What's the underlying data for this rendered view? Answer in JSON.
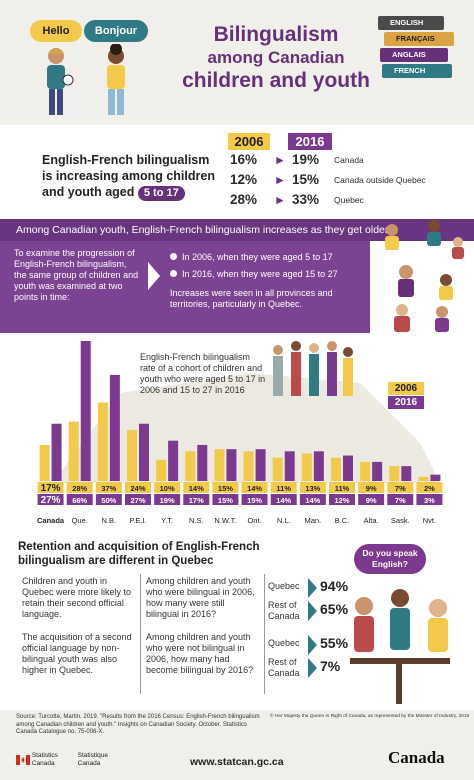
{
  "header": {
    "bubble_hello": "Hello",
    "bubble_bonjour": "Bonjour",
    "title_line1": "Bilingualism",
    "title_line2": "among Canadian",
    "title_line3": "children and youth",
    "books": [
      "ENGLISH",
      "FRANÇAIS",
      "ANGLAIS",
      "FRENCH"
    ]
  },
  "stats": {
    "year_a": "2006",
    "year_b": "2016",
    "lead": "English-French bilingualism is increasing among children and youth aged",
    "age_range": "5 to 17",
    "rows": [
      {
        "v2006": "16%",
        "v2016": "19%",
        "region": "Canada"
      },
      {
        "v2006": "12%",
        "v2016": "15%",
        "region": "Canada outside Quebec"
      },
      {
        "v2006": "28%",
        "v2016": "33%",
        "region": "Quebec"
      }
    ]
  },
  "cohort": {
    "band_title": "Among Canadian youth, English-French bilingualism increases as they get older",
    "examine_text": "To examine the progression of English-French bilingualism, the same group of children and youth was examined at two points in time:",
    "bullet1": "In 2006, when they were aged 5 to 17",
    "bullet2": "In 2016, when they were aged 15 to 27",
    "increases_text": "Increases were seen in all provinces and territories, particularly in Quebec."
  },
  "chart_data": {
    "type": "bar",
    "description": "English-French bilingualism rate of a cohort of children and youth who were aged 5 to 17 in 2006 and 15 to 27 in 2016",
    "categories": [
      "Canada",
      "Que.",
      "N.B.",
      "P.E.I.",
      "Y.T.",
      "N.S.",
      "N.W.T.",
      "Ont.",
      "N.L.",
      "Man.",
      "B.C.",
      "Alta.",
      "Sask.",
      "Nvt."
    ],
    "series": [
      {
        "name": "2006",
        "color": "#f3c94a",
        "values": [
          17,
          28,
          37,
          24,
          10,
          14,
          15,
          14,
          11,
          13,
          11,
          9,
          7,
          2
        ],
        "labels": [
          "17%",
          "28%",
          "37%",
          "24%",
          "10%",
          "14%",
          "15%",
          "14%",
          "11%",
          "13%",
          "11%",
          "9%",
          "7%",
          "2%"
        ]
      },
      {
        "name": "2016",
        "color": "#7b3a8f",
        "values": [
          27,
          66,
          50,
          27,
          19,
          17,
          15,
          15,
          14,
          14,
          12,
          9,
          7,
          3
        ],
        "labels": [
          "27%",
          "66%",
          "50%",
          "27%",
          "19%",
          "17%",
          "15%",
          "15%",
          "14%",
          "14%",
          "12%",
          "9%",
          "7%",
          "3%"
        ]
      }
    ],
    "ylim": [
      0,
      66
    ],
    "legend": "right"
  },
  "quebec": {
    "title": "Retention and acquisition of English-French bilingualism are different in Quebec",
    "badge": "Do you speak English?",
    "retain_text": "Children and youth in Quebec were more likely to retain their second official language.",
    "acquire_text": "The acquisition of a second official language by non-bilingual youth was also higher in Quebec.",
    "q1": "Among children and youth who were bilingual in 2006, how many were still bilingual in 2016?",
    "q2": "Among children and youth who were not bilingual in 2006, how many had become bilingual by 2016?",
    "label_quebec": "Quebec",
    "label_roc": "Rest of Canada",
    "q1_quebec": "94%",
    "q1_roc": "65%",
    "q2_quebec": "55%",
    "q2_roc": "7%"
  },
  "footer": {
    "source": "Source: Turcotte, Martin. 2019. \"Results from the 2016 Census: English-French bilingualism among Canadian children and youth.\" Insights on Canadian Society. October. Statistics Canada Catalogue no. 75-006-X.",
    "copyright": "© Her Majesty the Queen in Right of Canada, as represented by the Minister of Industry, 2019",
    "agency_en": "Statistics Canada",
    "agency_fr": "Statistique Canada",
    "website": "www.statcan.gc.ca",
    "wordmark": "Canada"
  }
}
